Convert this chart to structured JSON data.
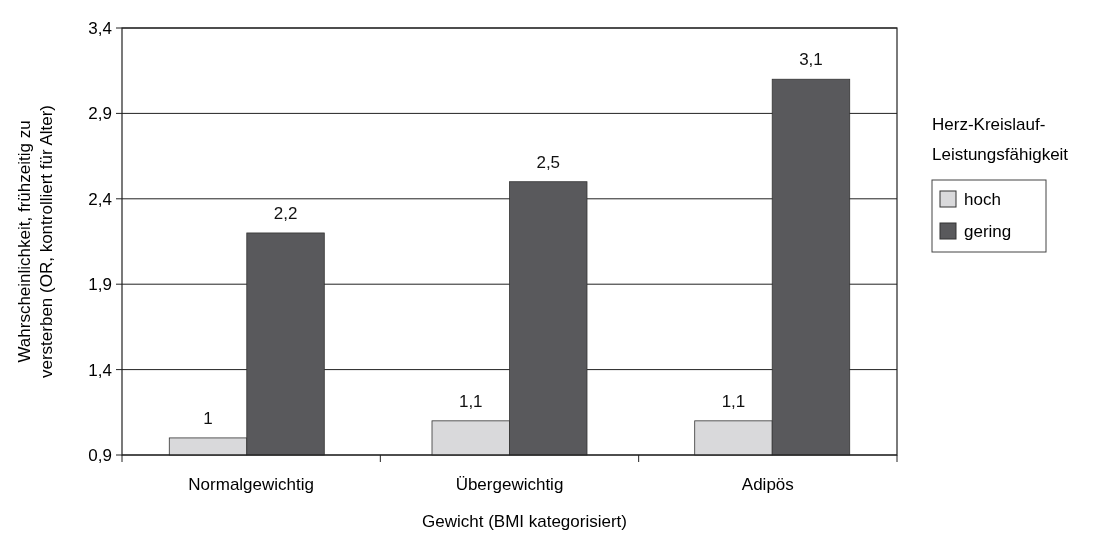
{
  "chart_data": {
    "type": "bar",
    "xlabel": "Gewicht (BMI kategorisiert)",
    "ylabel": "Wahrscheinlichkeit, frühzeitig zu versterben (OR, kontrolliert für Alter)",
    "legend_title": "Herz-Kreislauf-Leistungsfähigkeit",
    "categories": [
      "Normalgewichtig",
      "Übergewichtig",
      "Adipös"
    ],
    "series": [
      {
        "name": "hoch",
        "color": "#d9d9db",
        "values": [
          1,
          1.1,
          1.1
        ],
        "value_labels": [
          "1",
          "1,1",
          "1,1"
        ]
      },
      {
        "name": "gering",
        "color": "#59595c",
        "values": [
          2.2,
          2.5,
          3.1
        ],
        "value_labels": [
          "2,2",
          "2,5",
          "3,1"
        ]
      }
    ],
    "ylim": [
      0.9,
      3.4
    ],
    "yticks": [
      {
        "value": 0.9,
        "label": "0,9"
      },
      {
        "value": 1.4,
        "label": "1,4"
      },
      {
        "value": 1.9,
        "label": "1,9"
      },
      {
        "value": 2.4,
        "label": "2,4"
      },
      {
        "value": 2.9,
        "label": "2,9"
      },
      {
        "value": 3.4,
        "label": "3,4"
      }
    ],
    "grid": "y",
    "legend": "right"
  }
}
